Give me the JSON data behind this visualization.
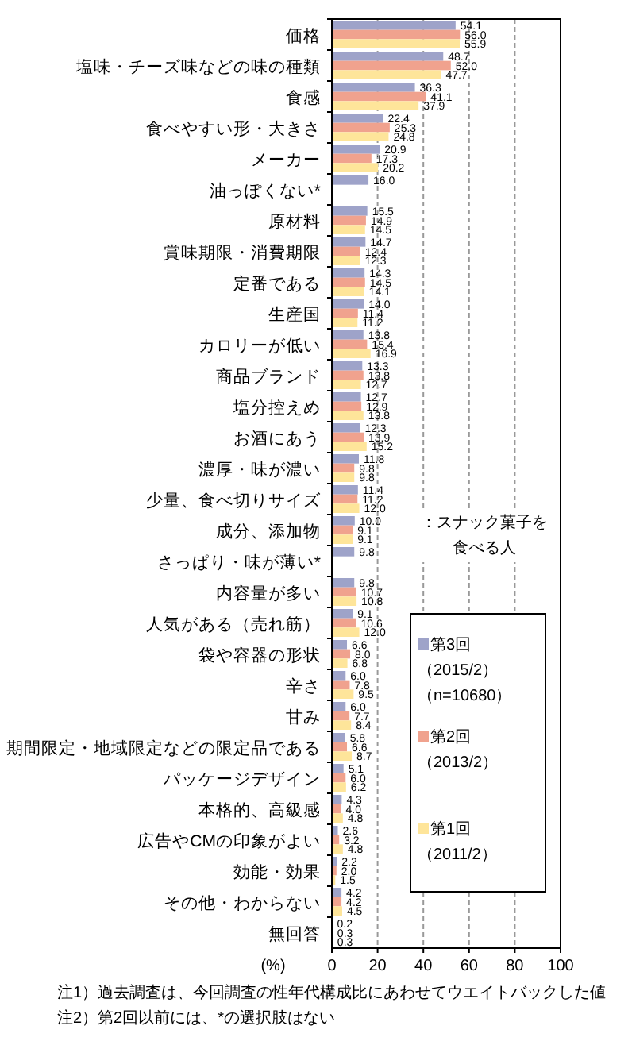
{
  "chart_data": {
    "type": "bar",
    "orientation": "horizontal",
    "xlabel": "(%)",
    "xlim": [
      0,
      100
    ],
    "xticks": [
      0,
      20,
      40,
      60,
      80,
      100
    ],
    "grid": "x",
    "legend": "bottom right",
    "categories": [
      "価格",
      "塩味・チーズ味などの味の種類",
      "食感",
      "食べやすい形・大きさ",
      "メーカー",
      "油っぽくない*",
      "原材料",
      "賞味期限・消費期限",
      "定番である",
      "生産国",
      "カロリーが低い",
      "商品ブランド",
      "塩分控えめ",
      "お酒にあう",
      "濃厚・味が濃い",
      "少量、食べ切りサイズ",
      "成分、添加物",
      "さっぱり・味が薄い*",
      "内容量が多い",
      "人気がある（売れ筋）",
      "袋や容器の形状",
      "辛さ",
      "甘み",
      "期間限定・地域限定などの限定品である",
      "パッケージデザイン",
      "本格的、高級感",
      "広告やCMの印象がよい",
      "効能・効果",
      "その他・わからない",
      "無回答"
    ],
    "series": [
      {
        "name": "第3回（2015/2）（n=10680）",
        "color": "#9ea3c9",
        "values": [
          54.1,
          48.7,
          36.3,
          22.4,
          20.9,
          16.0,
          15.5,
          14.7,
          14.3,
          14.0,
          13.8,
          13.3,
          12.7,
          12.3,
          11.8,
          11.4,
          10.0,
          9.8,
          9.8,
          9.1,
          6.6,
          6.0,
          6.0,
          5.8,
          5.1,
          4.3,
          2.6,
          2.2,
          4.2,
          0.2
        ],
        "value_labels": [
          "54.1",
          "48.7",
          "36.3",
          "22.4",
          "20.9",
          "16.0",
          "15.5",
          "14.7",
          "14.3",
          "14.0",
          "13.8",
          "13.3",
          "12.7",
          "12.3",
          "11.8",
          "11.4",
          "10.0",
          "9.8",
          "9.8",
          "9.1",
          "6.6",
          "6.0",
          "6.0",
          "5.8",
          "5.1",
          "4.3",
          "2.6",
          "2.2",
          "4.2",
          "0.2"
        ]
      },
      {
        "name": "第2回（2013/2）",
        "color": "#f0a28e",
        "values": [
          56.0,
          52.0,
          41.1,
          25.3,
          17.3,
          null,
          14.9,
          12.4,
          14.5,
          11.4,
          15.4,
          13.8,
          12.9,
          13.9,
          9.8,
          11.2,
          9.1,
          null,
          10.7,
          10.6,
          8.0,
          7.8,
          7.7,
          6.6,
          6.0,
          4.0,
          3.2,
          2.0,
          4.2,
          0.3
        ],
        "value_labels": [
          "56.0",
          "52.0",
          "41.1",
          "25.3",
          "17.3",
          null,
          "14.9",
          "12.4",
          "14.5",
          "11.4",
          "15.4",
          "13.8",
          "12.9",
          "13.9",
          "9.8",
          "11.2",
          "9.1",
          null,
          "10.7",
          "10.6",
          "8.0",
          "7.8",
          "7.7",
          "6.6",
          "6.0",
          "4.0",
          "3.2",
          "2.0",
          "4.2",
          "0.3"
        ]
      },
      {
        "name": "第1回（2011/2）",
        "color": "#fee59a",
        "values": [
          55.9,
          47.7,
          37.9,
          24.8,
          20.2,
          null,
          14.5,
          12.3,
          14.1,
          11.2,
          16.9,
          12.7,
          13.8,
          15.2,
          9.8,
          12.0,
          9.1,
          null,
          10.8,
          12.0,
          6.8,
          9.5,
          8.4,
          8.7,
          6.2,
          4.8,
          4.8,
          1.5,
          4.5,
          0.3
        ],
        "value_labels": [
          "55.9",
          "47.7",
          "37.9",
          "24.8",
          "20.2",
          null,
          "14.5",
          "12.3",
          "14.1",
          "11.2",
          "16.9",
          "12.7",
          "13.8",
          "15.2",
          "9.8",
          "12.0",
          "9.1",
          null,
          "10.8",
          "12.0",
          "6.8",
          "9.5",
          "8.4",
          "8.7",
          "6.2",
          "4.8",
          "4.8",
          "1.5",
          "4.5",
          "0.3"
        ]
      }
    ],
    "annotations": [
      "：スナック菓子を食べる人",
      "注1）過去調査は、今回調査の性年代構成比にあわせてウエイトバックした値",
      "注2）第2回以前には、*の選択肢はない"
    ]
  }
}
